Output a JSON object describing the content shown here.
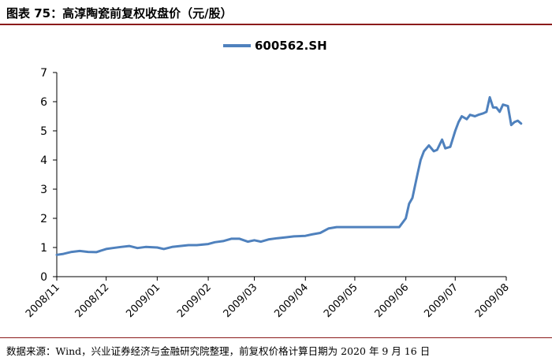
{
  "figure": {
    "title": "图表 75：高淳陶瓷前复权收盘价（元/股）",
    "source": "数据来源：Wind，兴业证券经济与金融研究院整理，前复权价格计算日期为 2020 年 9 月 16 日"
  },
  "colors": {
    "series": "#4f81bd",
    "axis": "#000000",
    "title_rule": "#8b1a1a"
  },
  "chart_data": {
    "type": "line",
    "title": "",
    "xlabel": "",
    "ylabel": "",
    "ylim": [
      0,
      7
    ],
    "yticks": [
      0,
      1,
      2,
      3,
      4,
      5,
      6,
      7
    ],
    "xticks": [
      "2008/11",
      "2008/12",
      "2009/01",
      "2009/02",
      "2009/03",
      "2009/04",
      "2009/05",
      "2009/06",
      "2009/07",
      "2009/08"
    ],
    "grid": false,
    "legend": "top-center",
    "series": [
      {
        "name": "600562.SH",
        "x": [
          "2008/11/01",
          "2008/11/05",
          "2008/11/10",
          "2008/11/15",
          "2008/11/20",
          "2008/11/25",
          "2008/12/01",
          "2008/12/05",
          "2008/12/10",
          "2008/12/15",
          "2008/12/20",
          "2008/12/25",
          "2009/01/01",
          "2009/01/05",
          "2009/01/10",
          "2009/01/15",
          "2009/01/20",
          "2009/01/25",
          "2009/02/01",
          "2009/02/05",
          "2009/02/10",
          "2009/02/15",
          "2009/02/20",
          "2009/02/25",
          "2009/03/01",
          "2009/03/05",
          "2009/03/10",
          "2009/03/15",
          "2009/03/20",
          "2009/03/25",
          "2009/04/01",
          "2009/04/05",
          "2009/04/10",
          "2009/04/15",
          "2009/04/20",
          "2009/04/25",
          "2009/05/01",
          "2009/05/05",
          "2009/05/10",
          "2009/05/15",
          "2009/05/20",
          "2009/05/25",
          "2009/05/28",
          "2009/06/01",
          "2009/06/03",
          "2009/06/05",
          "2009/06/08",
          "2009/06/10",
          "2009/06/12",
          "2009/06/15",
          "2009/06/18",
          "2009/06/20",
          "2009/06/23",
          "2009/06/25",
          "2009/06/28",
          "2009/07/01",
          "2009/07/03",
          "2009/07/05",
          "2009/07/08",
          "2009/07/10",
          "2009/07/13",
          "2009/07/15",
          "2009/07/18",
          "2009/07/20",
          "2009/07/22",
          "2009/07/24",
          "2009/07/26",
          "2009/07/28",
          "2009/07/30",
          "2009/08/02",
          "2009/08/04",
          "2009/08/06",
          "2009/08/08",
          "2009/08/10"
        ],
        "values": [
          0.75,
          0.78,
          0.85,
          0.88,
          0.85,
          0.84,
          0.95,
          0.98,
          1.02,
          1.05,
          0.98,
          1.02,
          1.0,
          0.95,
          1.02,
          1.05,
          1.08,
          1.08,
          1.12,
          1.18,
          1.22,
          1.3,
          1.3,
          1.2,
          1.25,
          1.2,
          1.28,
          1.32,
          1.35,
          1.38,
          1.4,
          1.45,
          1.5,
          1.65,
          1.7,
          1.7,
          1.7,
          1.7,
          1.7,
          1.7,
          1.7,
          1.7,
          1.7,
          2.0,
          2.5,
          2.7,
          3.5,
          4.0,
          4.3,
          4.5,
          4.3,
          4.35,
          4.7,
          4.4,
          4.45,
          5.0,
          5.3,
          5.5,
          5.4,
          5.55,
          5.5,
          5.55,
          5.6,
          5.65,
          6.15,
          5.8,
          5.8,
          5.65,
          5.9,
          5.85,
          5.2,
          5.3,
          5.35,
          5.25
        ]
      }
    ]
  }
}
